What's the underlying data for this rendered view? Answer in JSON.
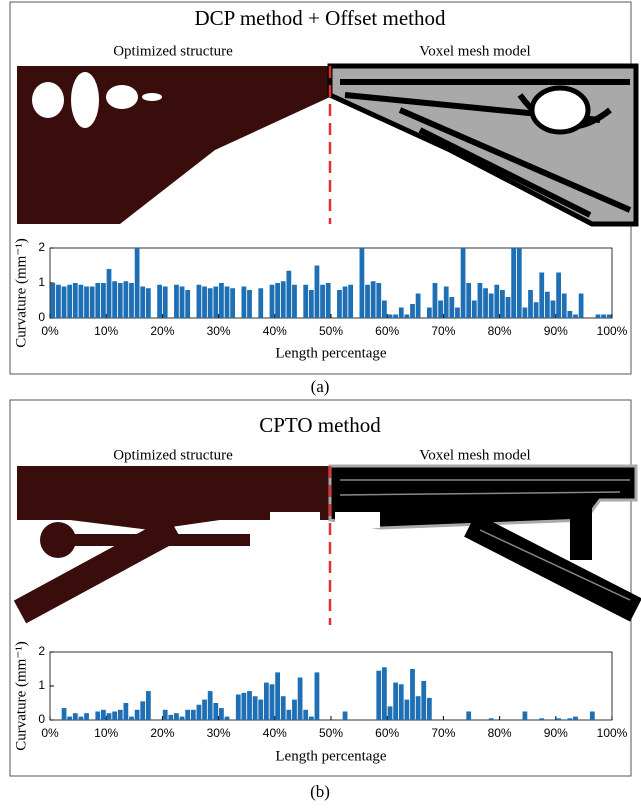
{
  "chart_data": [
    {
      "type": "bar",
      "title": "DCP method + Offset method",
      "annotations": [
        "Optimized structure",
        "Voxel mesh model"
      ],
      "x_label": "Length percentage",
      "y_label": "Curvature (mm⁻¹)",
      "caption": "(a)",
      "color": "#1f6fb4",
      "x": [
        0.5,
        1.5,
        2.5,
        3.5,
        4.5,
        5.5,
        6.5,
        7.5,
        8.5,
        9.5,
        10.5,
        11.5,
        12.5,
        13.5,
        14.5,
        15.5,
        16.5,
        17.5,
        18.5,
        19.5,
        20.5,
        21.5,
        22.5,
        23.5,
        24.5,
        25.5,
        26.5,
        27.5,
        28.5,
        29.5,
        30.5,
        31.5,
        32.5,
        33.5,
        34.5,
        35.5,
        36.5,
        37.5,
        38.5,
        39.5,
        40.5,
        41.5,
        42.5,
        43.5,
        44.5,
        45.5,
        46.5,
        47.5,
        48.5,
        49.5,
        50.5,
        51.5,
        52.5,
        53.5,
        54.5,
        55.5,
        56.5,
        57.5,
        58.5,
        59.5,
        60.5,
        61.5,
        62.5,
        63.5,
        64.5,
        65.5,
        66.5,
        67.5,
        68.5,
        69.5,
        70.5,
        71.5,
        72.5,
        73.5,
        74.5,
        75.5,
        76.5,
        77.5,
        78.5,
        79.5,
        80.5,
        81.5,
        82.5,
        83.5,
        84.5,
        85.5,
        86.5,
        87.5,
        88.5,
        89.5,
        90.5,
        91.5,
        92.5,
        93.5,
        94.5,
        95.5,
        96.5,
        97.5,
        98.5,
        99.5
      ],
      "values": [
        1.0,
        0.95,
        0.9,
        0.95,
        1.0,
        0.95,
        0.9,
        0.9,
        1.0,
        1.0,
        1.4,
        1.05,
        1.0,
        1.05,
        1.0,
        2.0,
        0.9,
        0.85,
        0,
        0.95,
        0.9,
        0,
        0.95,
        0.9,
        0.8,
        0,
        0.95,
        0.9,
        0.85,
        0.9,
        1.0,
        0.9,
        0.85,
        0,
        0.9,
        0.8,
        0,
        0.85,
        0,
        0.95,
        1.0,
        1.05,
        1.35,
        0.95,
        0,
        0.95,
        0.8,
        1.5,
        0.95,
        1.0,
        0,
        0.8,
        0.9,
        0.95,
        0,
        2.0,
        0.95,
        1.05,
        1.0,
        0.5,
        0.1,
        0.1,
        0.3,
        0.1,
        0.4,
        0.7,
        0,
        0.3,
        1.0,
        0.5,
        0.9,
        0.6,
        0.3,
        2.0,
        1.0,
        0.5,
        1.0,
        0.85,
        0.7,
        0.95,
        0.8,
        0.6,
        2.0,
        2.0,
        0.3,
        0.8,
        0.45,
        1.3,
        0.75,
        0.5,
        1.3,
        0.7,
        0.2,
        0.1,
        0.7,
        0,
        0,
        0.1,
        0.1,
        0.1
      ],
      "xlim": [
        0,
        100
      ],
      "ylim": [
        0,
        2
      ],
      "yticks": [
        0,
        1,
        2
      ],
      "xticks": [
        {
          "value": 0,
          "label": "0%"
        },
        {
          "value": 10,
          "label": "10%"
        },
        {
          "value": 20,
          "label": "20%"
        },
        {
          "value": 30,
          "label": "30%"
        },
        {
          "value": 40,
          "label": "40%"
        },
        {
          "value": 50,
          "label": "50%"
        },
        {
          "value": 60,
          "label": "60%"
        },
        {
          "value": 70,
          "label": "70%"
        },
        {
          "value": 80,
          "label": "80%"
        },
        {
          "value": 90,
          "label": "90%"
        },
        {
          "value": 100,
          "label": "100%"
        }
      ]
    },
    {
      "type": "bar",
      "title": "CPTO method",
      "annotations": [
        "Optimized structure",
        "Voxel mesh model"
      ],
      "x_label": "Length percentage",
      "y_label": "Curvature (mm⁻¹)",
      "caption": "(b)",
      "color": "#1f6fb4",
      "x": [
        0.5,
        1.5,
        2.5,
        3.5,
        4.5,
        5.5,
        6.5,
        7.5,
        8.5,
        9.5,
        10.5,
        11.5,
        12.5,
        13.5,
        14.5,
        15.5,
        16.5,
        17.5,
        18.5,
        19.5,
        20.5,
        21.5,
        22.5,
        23.5,
        24.5,
        25.5,
        26.5,
        27.5,
        28.5,
        29.5,
        30.5,
        31.5,
        32.5,
        33.5,
        34.5,
        35.5,
        36.5,
        37.5,
        38.5,
        39.5,
        40.5,
        41.5,
        42.5,
        43.5,
        44.5,
        45.5,
        46.5,
        47.5,
        48.5,
        49.5,
        50.5,
        51.5,
        52.5,
        53.5,
        54.5,
        55.5,
        56.5,
        57.5,
        58.5,
        59.5,
        60.5,
        61.5,
        62.5,
        63.5,
        64.5,
        65.5,
        66.5,
        67.5,
        68.5,
        69.5,
        70.5,
        71.5,
        72.5,
        73.5,
        74.5,
        75.5,
        76.5,
        77.5,
        78.5,
        79.5,
        80.5,
        81.5,
        82.5,
        83.5,
        84.5,
        85.5,
        86.5,
        87.5,
        88.5,
        89.5,
        90.5,
        91.5,
        92.5,
        93.5,
        94.5,
        95.5,
        96.5,
        97.5,
        98.5,
        99.5
      ],
      "values": [
        0,
        0,
        0.35,
        0.1,
        0.2,
        0.1,
        0.2,
        0,
        0.25,
        0.3,
        0.2,
        0.25,
        0.3,
        0.5,
        0.1,
        0.3,
        0.55,
        0.85,
        0,
        0,
        0.3,
        0.15,
        0.2,
        0.1,
        0.3,
        0.3,
        0.45,
        0.6,
        0.85,
        0.5,
        0.35,
        0.1,
        0,
        0.75,
        0.8,
        0.85,
        0.7,
        0.6,
        1.1,
        1.05,
        1.4,
        0.7,
        0.3,
        0.6,
        1.25,
        0.3,
        0.1,
        1.4,
        0,
        0,
        0,
        0,
        0.25,
        0,
        0,
        0,
        0,
        0,
        1.45,
        1.55,
        0.4,
        1.1,
        1.05,
        0.6,
        1.5,
        0.7,
        1.15,
        0.65,
        0,
        0,
        0,
        0,
        0,
        0,
        0.25,
        0,
        0,
        0,
        0.05,
        0,
        0,
        0,
        0,
        0,
        0.25,
        0,
        0,
        0.05,
        0,
        0,
        0.05,
        0,
        0.05,
        0.1,
        0,
        0,
        0.25,
        0,
        0,
        0
      ],
      "xlim": [
        0,
        100
      ],
      "ylim": [
        0,
        2
      ],
      "yticks": [
        0,
        1,
        2
      ],
      "xticks": [
        {
          "value": 0,
          "label": "0%"
        },
        {
          "value": 10,
          "label": "10%"
        },
        {
          "value": 20,
          "label": "20%"
        },
        {
          "value": 30,
          "label": "30%"
        },
        {
          "value": 40,
          "label": "40%"
        },
        {
          "value": 50,
          "label": "50%"
        },
        {
          "value": 60,
          "label": "60%"
        },
        {
          "value": 70,
          "label": "70%"
        },
        {
          "value": 80,
          "label": "80%"
        },
        {
          "value": 90,
          "label": "90%"
        },
        {
          "value": 100,
          "label": "100%"
        }
      ]
    }
  ]
}
